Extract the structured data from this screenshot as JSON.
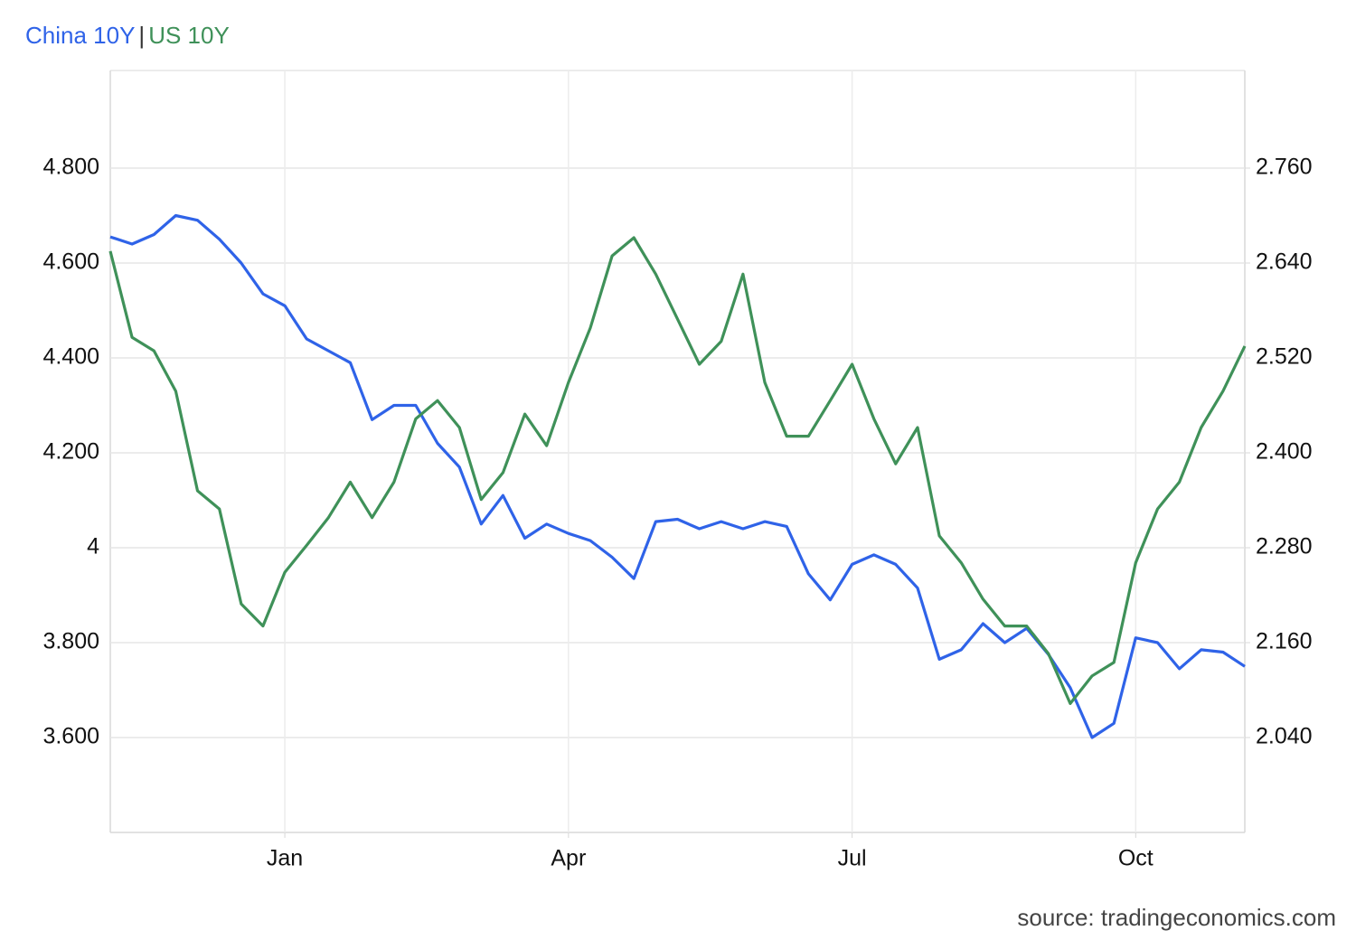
{
  "chart_data": {
    "type": "line",
    "legend_separator": "|",
    "source": "source: tradingeconomics.com",
    "categories": [
      null,
      null,
      null,
      null,
      null,
      null,
      null,
      null,
      "Jan",
      null,
      null,
      null,
      null,
      null,
      null,
      null,
      null,
      null,
      null,
      null,
      null,
      "Apr",
      null,
      null,
      null,
      null,
      null,
      null,
      null,
      null,
      null,
      null,
      null,
      null,
      "Jul",
      null,
      null,
      null,
      null,
      null,
      null,
      null,
      null,
      null,
      null,
      null,
      null,
      "Oct",
      null,
      null,
      null,
      null,
      null
    ],
    "series": [
      {
        "name": "China 10Y",
        "color": "#2f63e8",
        "values": [
          4.655,
          4.64,
          4.66,
          4.7,
          4.69,
          4.65,
          4.6,
          4.535,
          4.51,
          4.44,
          4.415,
          4.39,
          4.27,
          4.3,
          4.3,
          4.22,
          4.17,
          4.05,
          4.11,
          4.02,
          4.05,
          4.03,
          4.015,
          3.98,
          3.935,
          4.055,
          4.06,
          4.04,
          4.055,
          4.04,
          4.055,
          4.045,
          3.945,
          3.89,
          3.965,
          3.985,
          3.965,
          3.915,
          3.765,
          3.785,
          3.84,
          3.8,
          3.83,
          3.775,
          3.705,
          3.6,
          3.63,
          3.81,
          3.8,
          3.745,
          3.785,
          3.78,
          3.75
        ]
      },
      {
        "name": "US 10Y",
        "color": "#3f9159",
        "axis": "y2",
        "values": [
          2.655,
          2.546,
          2.529,
          2.478,
          2.352,
          2.329,
          2.209,
          2.181,
          2.249,
          2.283,
          2.318,
          2.363,
          2.318,
          2.363,
          2.443,
          2.466,
          2.432,
          2.341,
          2.375,
          2.449,
          2.409,
          2.489,
          2.558,
          2.649,
          2.672,
          2.626,
          2.569,
          2.512,
          2.541,
          2.626,
          2.489,
          2.421,
          2.421,
          2.466,
          2.512,
          2.443,
          2.386,
          2.432,
          2.295,
          2.261,
          2.215,
          2.181,
          2.181,
          2.146,
          2.083,
          2.118,
          2.135,
          2.261,
          2.329,
          2.363,
          2.432,
          2.478,
          2.535
        ]
      }
    ],
    "ylim": [
      3.4,
      5.0
    ],
    "yticks": [
      {
        "value": 3.6,
        "label": "3.600"
      },
      {
        "value": 3.8,
        "label": "3.800"
      },
      4,
      {
        "value": 4.2,
        "label": "4.200"
      },
      {
        "value": 4.4,
        "label": "4.400"
      },
      {
        "value": 4.6,
        "label": "4.600"
      },
      {
        "value": 4.8,
        "label": "4.800"
      }
    ],
    "y2lim": [
      1.92,
      2.88
    ],
    "y2ticks": [
      {
        "value": 2.04,
        "label": "2.040"
      },
      {
        "value": 2.16,
        "label": "2.160"
      },
      {
        "value": 2.28,
        "label": "2.280"
      },
      {
        "value": 2.4,
        "label": "2.400"
      },
      {
        "value": 2.52,
        "label": "2.520"
      },
      {
        "value": 2.64,
        "label": "2.640"
      },
      {
        "value": 2.76,
        "label": "2.760"
      }
    ],
    "grid": true
  }
}
